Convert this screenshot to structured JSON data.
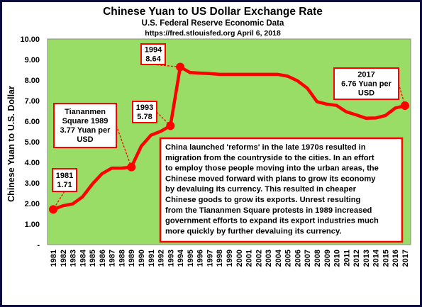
{
  "chart_data": {
    "type": "line",
    "title": "Chinese Yuan to US Dollar Exchange Rate",
    "subtitle": "U.S. Federal Reserve Economic Data",
    "source": "https://fred.stlouisfed.org April 6, 2018",
    "ylabel": "Chinese Yuan to U.S. Dollar",
    "xlabel": "",
    "ylim": [
      0,
      10
    ],
    "yticks": [
      "-",
      "1.00",
      "2.00",
      "3.00",
      "4.00",
      "5.00",
      "6.00",
      "7.00",
      "8.00",
      "9.00",
      "10.00"
    ],
    "grid": false,
    "line_color": "#ff0000",
    "plot_bg": "#99dd66",
    "frame_color": "#0a0a3c",
    "x": [
      1981,
      1982,
      1983,
      1984,
      1985,
      1986,
      1987,
      1988,
      1989,
      1990,
      1991,
      1992,
      1993,
      1994,
      1995,
      1996,
      1997,
      1998,
      1999,
      2000,
      2001,
      2002,
      2003,
      2004,
      2005,
      2006,
      2007,
      2008,
      2009,
      2010,
      2011,
      2012,
      2013,
      2014,
      2015,
      2016,
      2017
    ],
    "series": [
      {
        "values": [
          1.71,
          1.89,
          1.98,
          2.32,
          2.94,
          3.45,
          3.72,
          3.72,
          3.77,
          4.78,
          5.32,
          5.51,
          5.78,
          8.64,
          8.37,
          8.34,
          8.32,
          8.28,
          8.28,
          8.28,
          8.28,
          8.28,
          8.28,
          8.28,
          8.19,
          7.97,
          7.61,
          6.95,
          6.83,
          6.77,
          6.46,
          6.31,
          6.15,
          6.16,
          6.28,
          6.64,
          6.76
        ]
      }
    ],
    "markers": [
      {
        "year": 1981,
        "value": 1.71
      },
      {
        "year": 1989,
        "value": 3.77
      },
      {
        "year": 1993,
        "value": 5.78
      },
      {
        "year": 1994,
        "value": 8.64
      },
      {
        "year": 2017,
        "value": 6.76
      }
    ],
    "annotations": [
      {
        "year": 1981,
        "value": 1.71,
        "lines": [
          "1981",
          "1.71"
        ]
      },
      {
        "year": 1989,
        "value": 3.77,
        "lines": [
          "Tiananmen",
          "Square 1989",
          "3.77 Yuan per",
          "USD"
        ]
      },
      {
        "year": 1993,
        "value": 5.78,
        "lines": [
          "1993",
          "5.78"
        ]
      },
      {
        "year": 1994,
        "value": 8.64,
        "lines": [
          "1994",
          "8.64"
        ]
      },
      {
        "year": 2017,
        "value": 6.76,
        "lines": [
          "2017",
          "6.76  Yuan per",
          "USD"
        ]
      }
    ],
    "note_lines": [
      "China launched 'reforms'  in the late 1970s resulted in",
      "migration from the countryside to the cities.  In  an effort",
      "to employ  those people moving into the urban areas, the",
      "Chinese moved  forward with plans to grow its economy",
      "by  devaluing its currency.  This resulted in cheaper",
      "Chinese goods to grow its exports.   Unrest resulting",
      "from the Tiananmen Square protests in 1989 increased",
      "government efforts to expand its export industries much",
      "more  quickly by further devaluing its currency."
    ]
  }
}
